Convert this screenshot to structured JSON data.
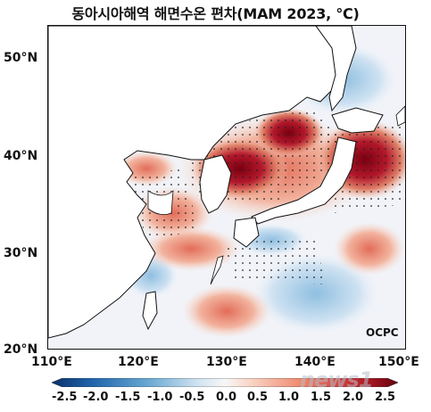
{
  "title": "동아시아해역 해면수온 편차(MAM 2023, ℃)",
  "lat_labels": [
    "50°N",
    "40°N",
    "30°N",
    "20°N"
  ],
  "lon_labels": [
    "110°E",
    "120°E",
    "130°E",
    "140°E",
    "150°E"
  ],
  "credit": "OCPC",
  "colorbar": {
    "ticks": [
      "-2.5",
      "-2.0",
      "-1.5",
      "-1.0",
      "-0.5",
      "0.0",
      "0.5",
      "1.0",
      "1.5",
      "2.0",
      "2.5"
    ],
    "low_color": "#08306b",
    "high_color": "#67000d"
  },
  "watermark": "news1"
}
